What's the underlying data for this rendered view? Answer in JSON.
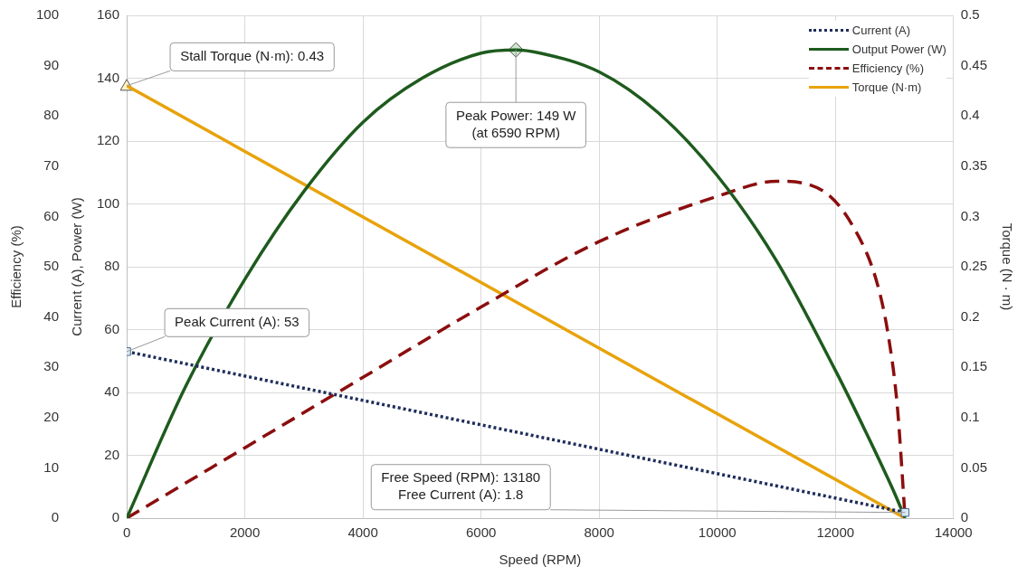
{
  "chart_data": {
    "type": "line",
    "xlabel": "Speed (RPM)",
    "ylabel": "Current (A), Power (W)",
    "y2label": "Torque (N · m)",
    "y3label": "Efficiency (%)",
    "xlim": [
      0,
      14000
    ],
    "xticks": [
      0,
      2000,
      4000,
      6000,
      8000,
      10000,
      12000,
      14000
    ],
    "ylim": [
      0,
      160
    ],
    "yticks": [
      0,
      20,
      40,
      60,
      80,
      100,
      120,
      140,
      160
    ],
    "y2lim": [
      0,
      0.5
    ],
    "y2ticks": [
      0,
      0.05,
      0.1,
      0.15,
      0.2,
      0.25,
      0.3,
      0.35,
      0.4,
      0.45,
      0.5
    ],
    "y3lim": [
      0,
      100
    ],
    "y3ticks": [
      0,
      10,
      20,
      30,
      40,
      50,
      60,
      70,
      80,
      90,
      100
    ],
    "grid": true,
    "legend": "top right",
    "series": [
      {
        "name": "Current (A)",
        "color": "#1f2d5a",
        "line_style": "dotted",
        "marker": "square",
        "x": [
          0,
          13180
        ],
        "values": [
          53,
          1.8
        ]
      },
      {
        "name": "Output Power (W)",
        "color": "#1e5b1e",
        "line_style": "solid",
        "x": [
          0,
          1000,
          2000,
          3000,
          4000,
          5000,
          6000,
          6590,
          7000,
          8000,
          9000,
          10000,
          11000,
          12000,
          12500,
          13000,
          13180
        ],
        "values": [
          0,
          42,
          76,
          104,
          126,
          140,
          148,
          149,
          148,
          142,
          129,
          109,
          82,
          47,
          28,
          8,
          0
        ]
      },
      {
        "name": "Efficiency (%)",
        "color": "#8b0e0e",
        "line_style": "dashed",
        "axis": "y3",
        "x": [
          0,
          2000,
          4000,
          6000,
          8000,
          10000,
          11000,
          11800,
          12300,
          12700,
          12900,
          13050,
          13180
        ],
        "values": [
          0,
          14,
          28,
          42,
          55,
          64,
          67,
          65,
          58,
          47,
          36,
          22,
          0
        ]
      },
      {
        "name": "Torque (N·m)",
        "color": "#e8a30c",
        "line_style": "solid",
        "axis": "y2",
        "x": [
          0,
          13180
        ],
        "values": [
          0.43,
          0
        ]
      }
    ],
    "annotations": [
      {
        "text": "Stall Torque (N·m): 0.43",
        "x": 0,
        "y": 137.6
      },
      {
        "text": "Peak Power: 149 W\n(at 6590 RPM)",
        "x": 6590,
        "y": 149
      },
      {
        "text": "Peak Current (A): 53",
        "x": 0,
        "y": 53
      },
      {
        "text": "Free Speed (RPM): 13180\nFree Current (A): 1.8",
        "x": 13180,
        "y": 1.8
      }
    ]
  }
}
